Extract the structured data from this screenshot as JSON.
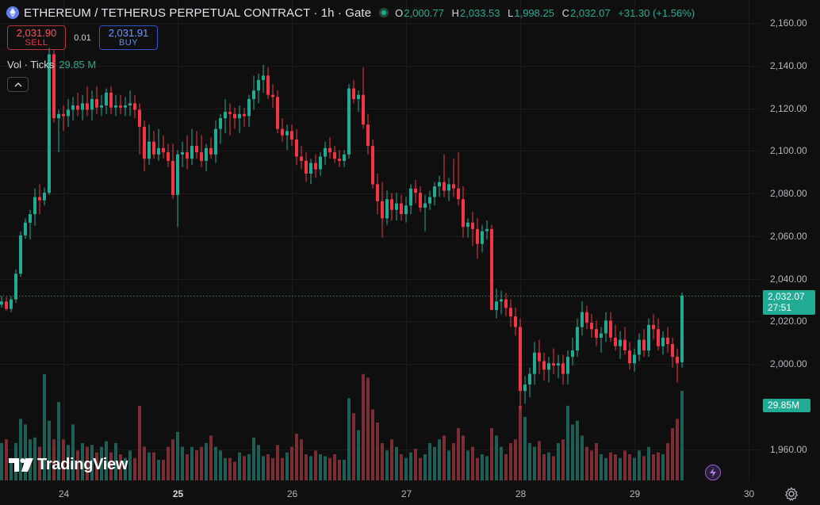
{
  "header": {
    "title": "ETHEREUM / TETHERUS PERPETUAL CONTRACT · 1h · Gate",
    "symbol_icon": "ethereum-icon",
    "ohlc": {
      "o_label": "O",
      "o": "2,000.77",
      "h_label": "H",
      "h": "2,033.53",
      "l_label": "L",
      "l": "1,998.25",
      "c_label": "C",
      "c": "2,032.07",
      "change": "+31.30 (+1.56%)"
    }
  },
  "trade": {
    "sell_price": "2,031.90",
    "sell_label": "SELL",
    "spread": "0.01",
    "buy_price": "2,031.91",
    "buy_label": "BUY"
  },
  "volume_legend": {
    "label": "Vol · Ticks",
    "value": "29.85 M"
  },
  "branding": {
    "name": "TradingView"
  },
  "price_axis": {
    "current_price": "2,032.07",
    "countdown": "27:51",
    "volume_badge": "29.85M"
  },
  "colors": {
    "up": "#22ab94",
    "down": "#f23645",
    "up_volume": "#1e5e55",
    "down_volume": "#7a2e33",
    "background": "#0f0f0f"
  },
  "chart_data": {
    "type": "candlestick",
    "timeframe": "1h",
    "y_ticks": [
      "2,160.00",
      "2,140.00",
      "2,120.00",
      "2,100.00",
      "2,080.00",
      "2,060.00",
      "2,040.00",
      "2,020.00",
      "2,000.00",
      "1,960.00"
    ],
    "y_tick_values": [
      2160,
      2140,
      2120,
      2100,
      2080,
      2060,
      2040,
      2020,
      2000,
      1960
    ],
    "x_ticks": [
      {
        "label": "24",
        "bar": 13,
        "bold": false
      },
      {
        "label": "25",
        "bar": 37,
        "bold": true
      },
      {
        "label": "26",
        "bar": 61,
        "bold": false
      },
      {
        "label": "27",
        "bar": 85,
        "bold": false
      },
      {
        "label": "28",
        "bar": 109,
        "bold": false
      },
      {
        "label": "29",
        "bar": 133,
        "bold": false
      },
      {
        "label": "30",
        "bar": 157,
        "bold": false
      }
    ],
    "candles": [
      [
        2027.8,
        2031.8,
        2026.3,
        2029.3,
        20
      ],
      [
        2029.3,
        2031.3,
        2024.8,
        2025.8,
        22
      ],
      [
        2025.8,
        2031.8,
        2024.3,
        2030.3,
        12
      ],
      [
        2030.3,
        2044.3,
        2028.8,
        2042.3,
        20
      ],
      [
        2042.3,
        2062.3,
        2040.8,
        2060.3,
        33
      ],
      [
        2060.3,
        2068.3,
        2058.8,
        2066.3,
        30
      ],
      [
        2066.3,
        2072.3,
        2058.3,
        2070.3,
        22
      ],
      [
        2070.3,
        2082.3,
        2064.8,
        2078.3,
        23
      ],
      [
        2078.3,
        2084.3,
        2070.3,
        2076.8,
        18
      ],
      [
        2076.8,
        2082.8,
        2074.3,
        2080.3,
        57
      ],
      [
        2080.3,
        2148.3,
        2079.3,
        2145.3,
        32
      ],
      [
        2145.3,
        2147.3,
        2113.3,
        2115.3,
        22
      ],
      [
        2115.3,
        2119.3,
        2099.3,
        2117.3,
        42
      ],
      [
        2117.3,
        2121.3,
        2109.3,
        2116.3,
        22
      ],
      [
        2116.3,
        2124.3,
        2111.3,
        2119.3,
        19
      ],
      [
        2119.3,
        2125.3,
        2114.3,
        2121.3,
        30
      ],
      [
        2121.3,
        2127.3,
        2116.3,
        2119.3,
        16
      ],
      [
        2119.3,
        2126.3,
        2114.3,
        2122.3,
        20
      ],
      [
        2122.3,
        2130.3,
        2116.3,
        2119.3,
        18
      ],
      [
        2119.3,
        2128.3,
        2114.3,
        2124.3,
        19
      ],
      [
        2124.3,
        2130.3,
        2117.3,
        2120.3,
        15
      ],
      [
        2120.3,
        2126.3,
        2116.3,
        2121.3,
        18
      ],
      [
        2121.3,
        2129.3,
        2117.3,
        2127.3,
        21
      ],
      [
        2127.3,
        2130.3,
        2117.3,
        2120.3,
        15
      ],
      [
        2120.3,
        2126.3,
        2116.3,
        2121.3,
        20
      ],
      [
        2121.3,
        2126.3,
        2117.3,
        2120.3,
        14
      ],
      [
        2120.3,
        2125.3,
        2116.3,
        2121.3,
        12
      ],
      [
        2121.3,
        2128.3,
        2116.3,
        2122.3,
        16
      ],
      [
        2122.3,
        2126.3,
        2115.3,
        2119.3,
        12
      ],
      [
        2119.3,
        2122.3,
        2098.3,
        2111.3,
        40
      ],
      [
        2111.3,
        2114.3,
        2090.3,
        2096.3,
        18
      ],
      [
        2096.3,
        2112.3,
        2093.3,
        2104.3,
        15
      ],
      [
        2104.3,
        2109.3,
        2096.3,
        2098.3,
        15
      ],
      [
        2098.3,
        2110.3,
        2095.3,
        2101.3,
        11
      ],
      [
        2101.3,
        2107.3,
        2096.3,
        2099.3,
        11
      ],
      [
        2099.3,
        2103.3,
        2092.3,
        2095.3,
        18
      ],
      [
        2095.3,
        2103.3,
        2077.3,
        2079.3,
        22
      ],
      [
        2079.3,
        2100.3,
        2064.3,
        2098.3,
        26
      ],
      [
        2098.3,
        2104.3,
        2092.3,
        2099.3,
        18
      ],
      [
        2099.3,
        2107.3,
        2091.3,
        2096.3,
        14
      ],
      [
        2096.3,
        2110.3,
        2093.3,
        2102.3,
        18
      ],
      [
        2102.3,
        2109.3,
        2096.3,
        2099.3,
        16
      ],
      [
        2099.3,
        2107.3,
        2092.3,
        2095.3,
        18
      ],
      [
        2095.3,
        2103.3,
        2090.3,
        2101.3,
        20
      ],
      [
        2101.3,
        2106.3,
        2096.3,
        2098.3,
        24
      ],
      [
        2098.3,
        2114.3,
        2094.3,
        2110.3,
        18
      ],
      [
        2110.3,
        2117.3,
        2103.3,
        2115.3,
        16
      ],
      [
        2115.3,
        2124.3,
        2108.3,
        2118.3,
        12
      ],
      [
        2118.3,
        2122.3,
        2107.3,
        2117.3,
        12
      ],
      [
        2117.3,
        2120.3,
        2110.3,
        2115.3,
        10
      ],
      [
        2115.3,
        2121.3,
        2108.3,
        2117.3,
        15
      ],
      [
        2117.3,
        2120.3,
        2111.3,
        2116.3,
        13
      ],
      [
        2116.3,
        2126.3,
        2111.3,
        2124.3,
        14
      ],
      [
        2124.3,
        2135.3,
        2119.3,
        2128.3,
        23
      ],
      [
        2128.3,
        2136.3,
        2122.3,
        2133.3,
        19
      ],
      [
        2133.3,
        2140.3,
        2127.3,
        2135.3,
        13
      ],
      [
        2135.3,
        2139.3,
        2124.3,
        2126.3,
        14
      ],
      [
        2126.3,
        2131.3,
        2120.3,
        2125.3,
        12
      ],
      [
        2125.3,
        2128.3,
        2108.3,
        2110.3,
        19
      ],
      [
        2110.3,
        2115.3,
        2104.3,
        2107.3,
        12
      ],
      [
        2107.3,
        2112.3,
        2100.3,
        2109.3,
        15
      ],
      [
        2109.3,
        2112.3,
        2102.3,
        2105.3,
        18
      ],
      [
        2105.3,
        2110.3,
        2093.3,
        2097.3,
        25
      ],
      [
        2097.3,
        2102.3,
        2091.3,
        2095.3,
        22
      ],
      [
        2095.3,
        2099.3,
        2085.3,
        2089.3,
        14
      ],
      [
        2089.3,
        2096.3,
        2084.3,
        2094.3,
        13
      ],
      [
        2094.3,
        2098.3,
        2087.3,
        2091.3,
        16
      ],
      [
        2091.3,
        2099.3,
        2088.3,
        2097.3,
        14
      ],
      [
        2097.3,
        2104.3,
        2093.3,
        2101.3,
        13
      ],
      [
        2101.3,
        2106.3,
        2096.3,
        2099.3,
        12
      ],
      [
        2099.3,
        2102.3,
        2094.3,
        2096.3,
        14
      ],
      [
        2096.3,
        2100.3,
        2092.3,
        2095.3,
        11
      ],
      [
        2095.3,
        2100.3,
        2092.3,
        2098.3,
        11
      ],
      [
        2098.3,
        2131.3,
        2096.3,
        2129.3,
        44
      ],
      [
        2129.3,
        2133.3,
        2122.3,
        2124.3,
        36
      ],
      [
        2124.3,
        2128.3,
        2118.3,
        2126.3,
        27
      ],
      [
        2126.3,
        2139.3,
        2110.3,
        2112.3,
        57
      ],
      [
        2112.3,
        2117.3,
        2098.3,
        2102.3,
        55
      ],
      [
        2102.3,
        2105.3,
        2082.3,
        2084.3,
        38
      ],
      [
        2084.3,
        2089.3,
        2070.3,
        2076.3,
        31
      ],
      [
        2076.3,
        2085.3,
        2059.3,
        2068.3,
        20
      ],
      [
        2068.3,
        2081.3,
        2065.3,
        2077.3,
        16
      ],
      [
        2077.3,
        2080.3,
        2067.3,
        2072.3,
        22
      ],
      [
        2072.3,
        2080.3,
        2067.3,
        2075.3,
        18
      ],
      [
        2075.3,
        2079.3,
        2067.3,
        2070.3,
        14
      ],
      [
        2070.3,
        2078.3,
        2066.3,
        2074.3,
        12
      ],
      [
        2074.3,
        2084.3,
        2070.3,
        2082.3,
        15
      ],
      [
        2082.3,
        2086.3,
        2075.3,
        2080.3,
        17
      ],
      [
        2080.3,
        2083.3,
        2071.3,
        2073.3,
        12
      ],
      [
        2073.3,
        2079.3,
        2062.3,
        2075.3,
        14
      ],
      [
        2075.3,
        2081.3,
        2072.3,
        2078.3,
        20
      ],
      [
        2078.3,
        2085.3,
        2074.3,
        2083.3,
        18
      ],
      [
        2083.3,
        2088.3,
        2078.3,
        2085.3,
        22
      ],
      [
        2085.3,
        2098.3,
        2078.3,
        2081.3,
        24
      ],
      [
        2081.3,
        2087.3,
        2076.3,
        2084.3,
        16
      ],
      [
        2084.3,
        2096.3,
        2078.3,
        2082.3,
        20
      ],
      [
        2082.3,
        2099.3,
        2074.3,
        2077.3,
        28
      ],
      [
        2077.3,
        2083.3,
        2059.3,
        2064.3,
        24
      ],
      [
        2064.3,
        2068.3,
        2059.3,
        2066.3,
        16
      ],
      [
        2066.3,
        2071.3,
        2055.3,
        2063.3,
        18
      ],
      [
        2063.3,
        2068.3,
        2049.3,
        2056.3,
        12
      ],
      [
        2056.3,
        2065.3,
        2052.3,
        2062.3,
        14
      ],
      [
        2062.3,
        2067.3,
        2058.3,
        2063.3,
        13
      ],
      [
        2063.3,
        2065.3,
        2025.3,
        2025.3,
        28
      ],
      [
        2025.3,
        2035.3,
        2021.3,
        2029.3,
        24
      ],
      [
        2029.3,
        2034.3,
        2023.3,
        2030.3,
        18
      ],
      [
        2030.3,
        2033.3,
        2022.3,
        2026.3,
        14
      ],
      [
        2026.3,
        2030.3,
        2017.3,
        2022.3,
        20
      ],
      [
        2022.3,
        2026.3,
        2013.3,
        2017.3,
        22
      ],
      [
        2017.3,
        2021.3,
        1978.3,
        1987.3,
        40
      ],
      [
        1987.3,
        1994.3,
        1981.3,
        1990.3,
        34
      ],
      [
        1990.3,
        1998.3,
        1984.3,
        1995.3,
        20
      ],
      [
        1995.3,
        2010.3,
        1990.3,
        2005.3,
        18
      ],
      [
        2005.3,
        2011.3,
        1995.3,
        2001.3,
        21
      ],
      [
        2001.3,
        2005.3,
        1992.3,
        1997.3,
        14
      ],
      [
        1997.3,
        2003.3,
        1991.3,
        2000.3,
        15
      ],
      [
        2000.3,
        2007.3,
        1995.3,
        1999.3,
        13
      ],
      [
        1999.3,
        2004.3,
        1993.3,
        2000.3,
        20
      ],
      [
        2000.3,
        2004.3,
        1990.3,
        1995.3,
        22
      ],
      [
        1995.3,
        2006.3,
        1990.3,
        2003.3,
        40
      ],
      [
        2003.3,
        2012.3,
        1999.3,
        2006.3,
        30
      ],
      [
        2006.3,
        2021.3,
        2003.3,
        2017.3,
        32
      ],
      [
        2017.3,
        2029.3,
        2013.3,
        2024.3,
        24
      ],
      [
        2024.3,
        2027.3,
        2016.3,
        2019.3,
        18
      ],
      [
        2019.3,
        2023.3,
        2012.3,
        2016.3,
        16
      ],
      [
        2016.3,
        2020.3,
        2008.3,
        2012.3,
        20
      ],
      [
        2012.3,
        2017.3,
        2005.3,
        2014.3,
        14
      ],
      [
        2014.3,
        2024.3,
        2010.3,
        2020.3,
        12
      ],
      [
        2020.3,
        2024.3,
        2010.3,
        2012.3,
        15
      ],
      [
        2012.3,
        2018.3,
        2006.3,
        2008.3,
        14
      ],
      [
        2008.3,
        2015.3,
        2002.3,
        2011.3,
        12
      ],
      [
        2011.3,
        2017.3,
        2004.3,
        2006.3,
        16
      ],
      [
        2006.3,
        2010.3,
        1997.3,
        2000.3,
        14
      ],
      [
        2000.3,
        2007.3,
        1996.3,
        2004.3,
        12
      ],
      [
        2004.3,
        2014.3,
        2001.3,
        2011.3,
        16
      ],
      [
        2011.3,
        2016.3,
        2003.3,
        2006.3,
        13
      ],
      [
        2006.3,
        2021.3,
        2003.3,
        2018.3,
        18
      ],
      [
        2018.3,
        2023.3,
        2011.3,
        2016.3,
        14
      ],
      [
        2016.3,
        2021.3,
        2006.3,
        2008.3,
        15
      ],
      [
        2008.3,
        2015.3,
        2004.3,
        2012.3,
        14
      ],
      [
        2012.3,
        2017.3,
        2005.3,
        2009.3,
        20
      ],
      [
        2009.3,
        2012.3,
        1998.3,
        2003.3,
        28
      ],
      [
        2003.3,
        2007.3,
        1991.3,
        2000.3,
        33
      ],
      [
        2000.77,
        2033.53,
        1998.25,
        2032.07,
        48
      ]
    ]
  }
}
